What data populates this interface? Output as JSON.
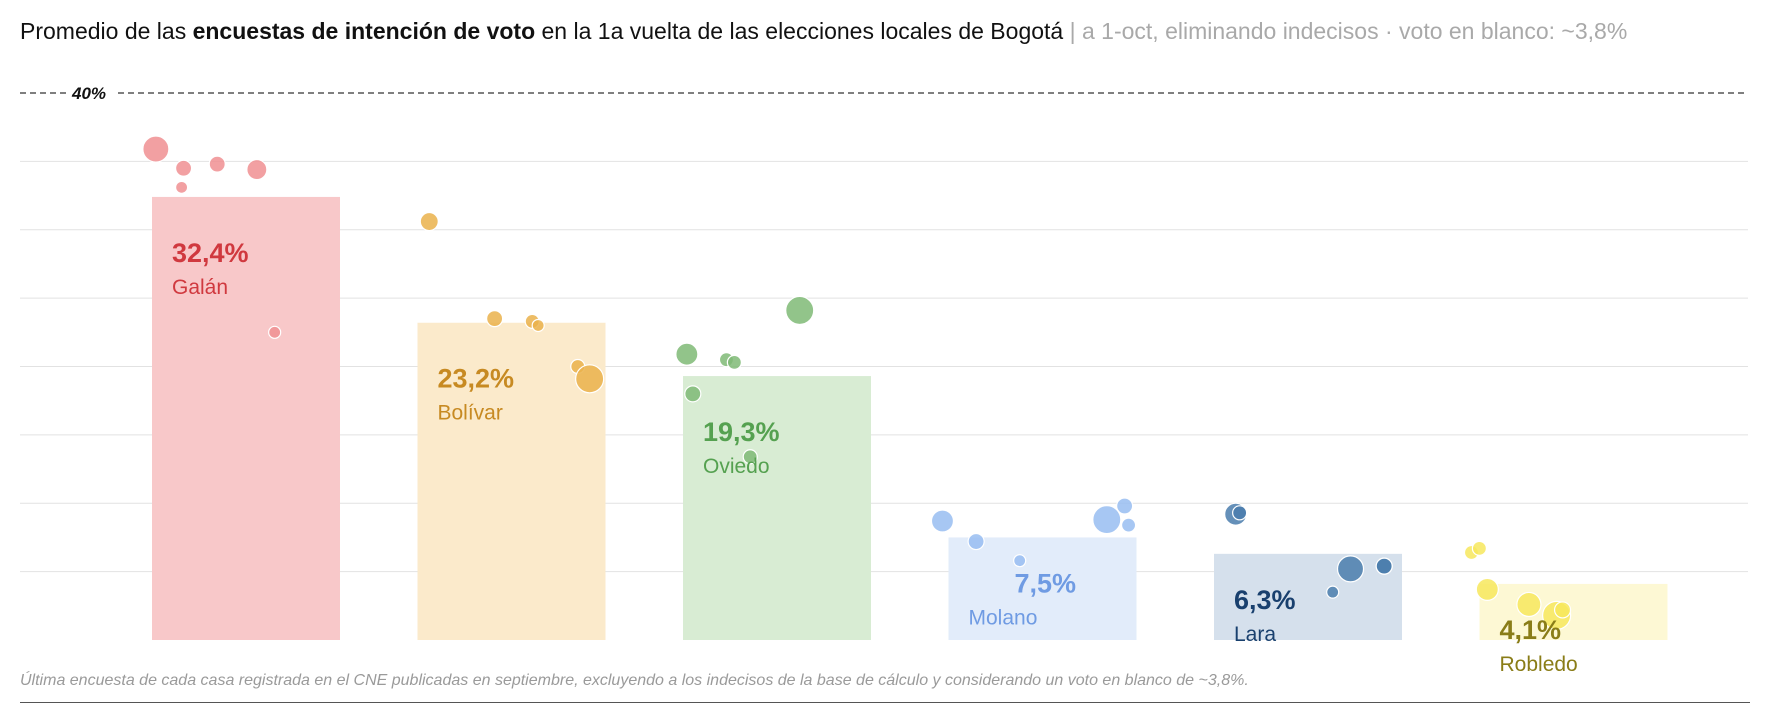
{
  "title": {
    "part1": "Promedio de las ",
    "bold": "encuestas de intención de voto",
    "part2": " en la 1a vuelta de las elecciones locales de Bogotá",
    "subtitle": " | a 1-oct, eliminando indecisos · voto en blanco: ~3,8%"
  },
  "footnote": "Última encuesta de cada casa registrada en el CNE publicadas en septiembre, excluyendo a los indecisos de la base de cálculo y considerando un voto en blanco de ~3,8%.",
  "chart_data": {
    "type": "bar",
    "categories": [
      "Galán",
      "Bolívar",
      "Oviedo",
      "Molano",
      "Lara",
      "Robledo"
    ],
    "values": [
      32.4,
      23.2,
      19.3,
      7.5,
      6.3,
      4.1
    ],
    "value_labels": [
      "32,4%",
      "23,2%",
      "19,3%",
      "7,5%",
      "6,3%",
      "4,1%"
    ],
    "ylim": [
      0,
      40
    ],
    "y_tick_label": "40%",
    "y_tick_value": 40,
    "gridlines": [
      5,
      10,
      15,
      20,
      25,
      30,
      35
    ],
    "grid": true,
    "colors": {
      "bar_fill": [
        "#f8c8c9",
        "#fbeacb",
        "#d8ecd3",
        "#e2ecfa",
        "#d5e0ec",
        "#fdf8d4"
      ],
      "point": [
        "#f08f92",
        "#eab24b",
        "#7fba76",
        "#98bdf1",
        "#4a7dad",
        "#f7e85d"
      ],
      "label": [
        "#d0393f",
        "#c78a22",
        "#55a150",
        "#6f9be3",
        "#19406e",
        "#8a7d18"
      ]
    },
    "polls": [
      [
        35.9,
        34.5,
        34.8,
        33.1,
        34.4,
        22.5
      ],
      [
        30.6,
        23.5,
        23.3,
        23.0,
        20.0,
        19.1
      ],
      [
        20.9,
        20.5,
        20.3,
        18.0,
        13.4,
        24.1
      ],
      [
        8.7,
        7.2,
        5.8,
        8.8,
        9.8,
        8.4
      ],
      [
        9.2,
        9.3,
        5.2,
        3.5,
        5.4,
        5.4
      ],
      [
        6.4,
        6.7,
        3.7,
        2.6,
        1.8,
        2.2
      ]
    ]
  }
}
